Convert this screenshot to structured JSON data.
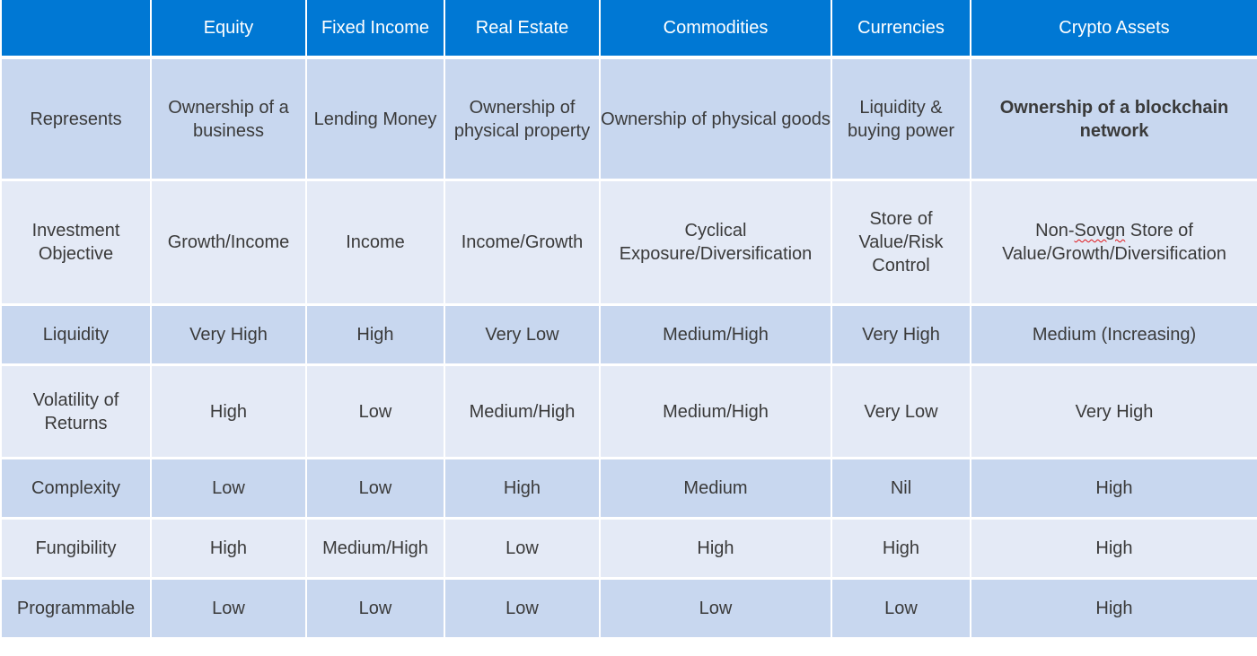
{
  "header": {
    "corner": "",
    "columns": [
      "Equity",
      "Fixed Income",
      "Real Estate",
      "Commodities",
      "Currencies",
      "Crypto Assets"
    ]
  },
  "rows": [
    {
      "label": "Represents",
      "cells": [
        "Ownership of a business",
        "Lending Money",
        "Ownership of physical property",
        "Ownership of physical goods",
        "Liquidity & buying power",
        "Ownership of a blockchain network"
      ]
    },
    {
      "label": "Investment Objective",
      "cells": [
        "Growth/Income",
        "Income",
        "Income/Growth",
        "Cyclical Exposure/Diversification",
        "Store of Value/Risk Control",
        "Non-Sovgn Store of Value/Growth/Diversification"
      ],
      "crypto_parts": {
        "prefix": "Non-",
        "flagged": "Sovgn",
        "suffix": " Store of Value/Growth/Diversification"
      }
    },
    {
      "label": "Liquidity",
      "cells": [
        "Very High",
        "High",
        "Very Low",
        "Medium/High",
        "Very High",
        "Medium (Increasing)"
      ]
    },
    {
      "label": "Volatility of Returns",
      "cells": [
        "High",
        "Low",
        "Medium/High",
        "Medium/High",
        "Very Low",
        "Very High"
      ]
    },
    {
      "label": "Complexity",
      "cells": [
        "Low",
        "Low",
        "High",
        "Medium",
        "Nil",
        "High"
      ]
    },
    {
      "label": "Fungibility",
      "cells": [
        "High",
        "Medium/High",
        "Low",
        "High",
        "High",
        "High"
      ]
    },
    {
      "label": "Programmable",
      "cells": [
        "Low",
        "Low",
        "Low",
        "Low",
        "Low",
        "High"
      ]
    }
  ],
  "colors": {
    "header_bg": "#0078d4",
    "row_dark": "#c8d7ef",
    "row_light": "#e4eaf6",
    "spellcheck_underline": "#e0161b"
  }
}
